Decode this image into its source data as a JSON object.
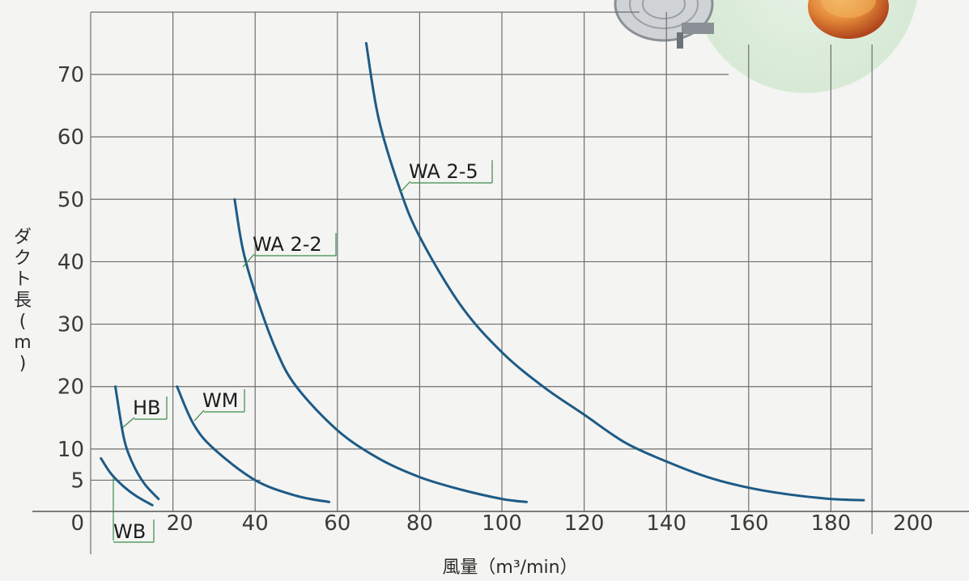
{
  "chart_data": {
    "type": "line",
    "title": "",
    "xlabel": "風量（m³/min）",
    "ylabel": "ダクト長(m)",
    "xlim": [
      0,
      200
    ],
    "ylim": [
      -6,
      80
    ],
    "grid": true,
    "x_ticks": [
      "0",
      "20",
      "40",
      "60",
      "80",
      "100",
      "120",
      "140",
      "160",
      "180",
      "200"
    ],
    "y_ticks": [
      "5",
      "10",
      "20",
      "30",
      "40",
      "50",
      "60",
      "70"
    ],
    "y_tick_values": [
      5,
      10,
      20,
      30,
      40,
      50,
      60,
      70
    ],
    "series": [
      {
        "name": "WB",
        "x": [
          2.5,
          5,
          8,
          11,
          15
        ],
        "y": [
          8.5,
          6,
          4,
          2.5,
          1
        ]
      },
      {
        "name": "HB",
        "x": [
          6,
          8,
          10,
          13,
          16.5
        ],
        "y": [
          20,
          12,
          8,
          4.5,
          2
        ]
      },
      {
        "name": "WM",
        "x": [
          21,
          25,
          30,
          40,
          50,
          58
        ],
        "y": [
          20,
          14,
          10,
          5,
          2.5,
          1.5
        ]
      },
      {
        "name": "WA 2-2",
        "x": [
          35,
          37,
          40,
          45,
          50,
          60,
          70,
          80,
          90,
          100,
          106
        ],
        "y": [
          50,
          42,
          35,
          26,
          20,
          13,
          8.5,
          5.5,
          3.5,
          2,
          1.5
        ]
      },
      {
        "name": "WA 2-5",
        "x": [
          67,
          70,
          75,
          80,
          90,
          100,
          110,
          120,
          130,
          140,
          150,
          160,
          170,
          180,
          188
        ],
        "y": [
          75,
          63,
          52,
          44,
          33,
          25.5,
          20,
          15.5,
          11,
          8,
          5.5,
          3.8,
          2.7,
          2,
          1.8
        ]
      }
    ],
    "line_color": "#1d5b86"
  }
}
